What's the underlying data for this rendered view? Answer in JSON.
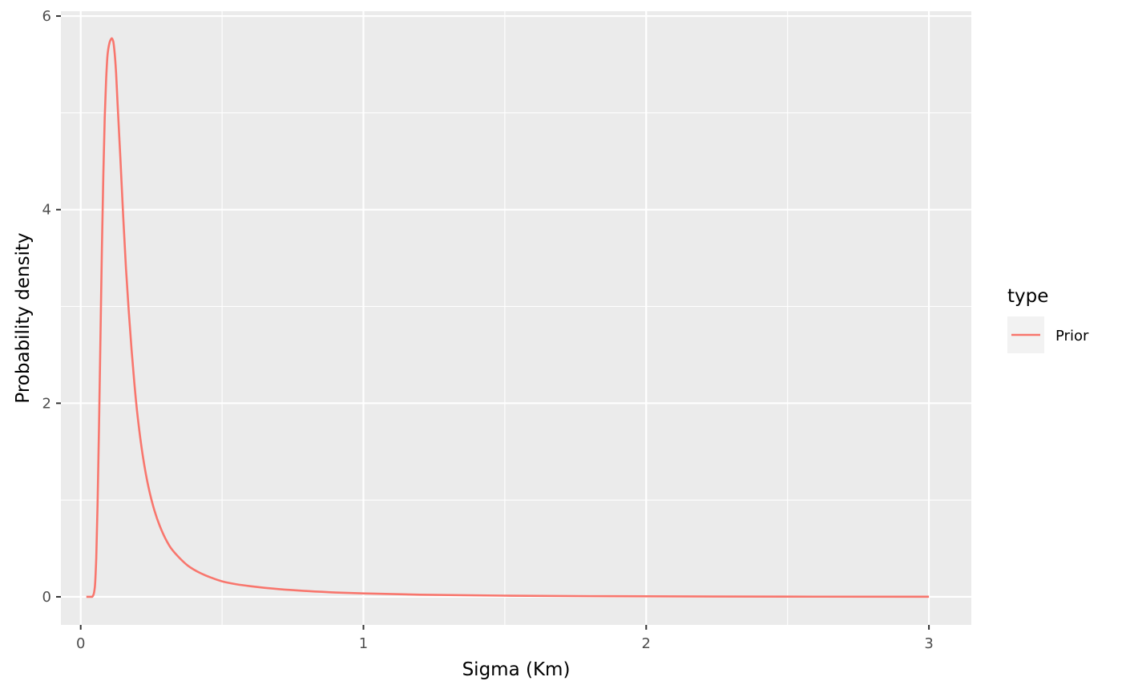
{
  "chart_data": {
    "type": "line",
    "title": "",
    "xlabel": "Sigma (Km)",
    "ylabel": "Probability density",
    "xlim": [
      -0.07,
      3.15
    ],
    "ylim": [
      -0.29,
      6.05
    ],
    "x_ticks": [
      0,
      1,
      2,
      3
    ],
    "x_tick_labels": [
      "0",
      "1",
      "2",
      "3"
    ],
    "y_ticks": [
      0,
      2,
      4,
      6
    ],
    "y_tick_labels": [
      "0",
      "2",
      "4",
      "6"
    ],
    "grid": true,
    "legend": {
      "title": "type",
      "position": "right"
    },
    "colors": {
      "panel": "#ebebeb",
      "grid": "#ffffff",
      "prior": "#F8766D"
    },
    "series": [
      {
        "name": "Prior",
        "color": "#F8766D",
        "x": [
          0.02,
          0.03,
          0.04,
          0.045,
          0.05,
          0.055,
          0.06,
          0.065,
          0.07,
          0.075,
          0.08,
          0.085,
          0.09,
          0.095,
          0.1,
          0.105,
          0.11,
          0.115,
          0.12,
          0.125,
          0.13,
          0.14,
          0.15,
          0.16,
          0.17,
          0.18,
          0.19,
          0.2,
          0.22,
          0.24,
          0.26,
          0.28,
          0.3,
          0.32,
          0.35,
          0.38,
          0.42,
          0.46,
          0.5,
          0.55,
          0.6,
          0.7,
          0.8,
          0.9,
          1.0,
          1.2,
          1.5,
          1.8,
          2.0,
          2.5,
          3.0
        ],
        "y": [
          0,
          0,
          0,
          0.02,
          0.1,
          0.4,
          1.0,
          1.8,
          2.7,
          3.6,
          4.35,
          4.95,
          5.35,
          5.6,
          5.7,
          5.75,
          5.77,
          5.74,
          5.62,
          5.42,
          5.12,
          4.55,
          3.95,
          3.4,
          2.95,
          2.55,
          2.2,
          1.9,
          1.45,
          1.13,
          0.9,
          0.73,
          0.6,
          0.5,
          0.4,
          0.32,
          0.25,
          0.2,
          0.16,
          0.13,
          0.11,
          0.08,
          0.06,
          0.045,
          0.035,
          0.022,
          0.012,
          0.007,
          0.005,
          0.002,
          0.001
        ]
      }
    ]
  }
}
